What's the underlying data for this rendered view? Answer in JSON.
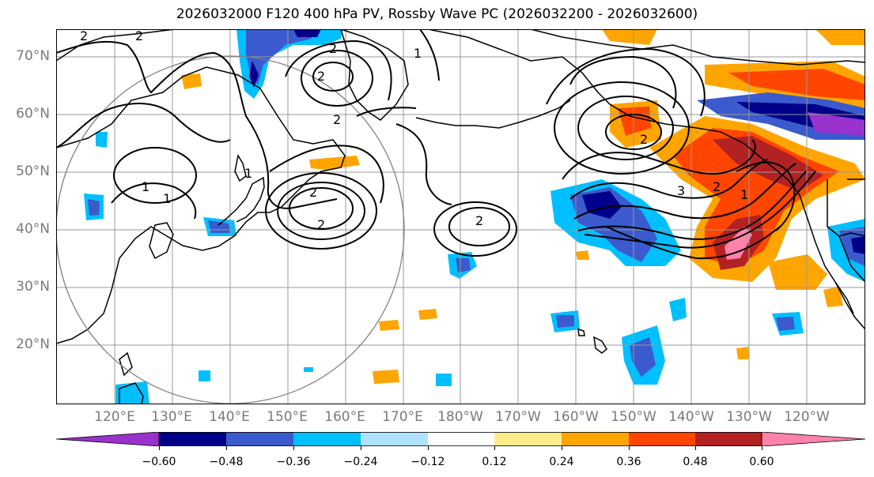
{
  "title": "2026032000 F120 400 hPa PV, Rossby Wave PC (2026032200 - 2026032600)",
  "lat_labels": [
    "70°N",
    "60°N",
    "50°N",
    "40°N",
    "30°N",
    "20°N"
  ],
  "lon_labels": [
    "120°E",
    "130°E",
    "140°E",
    "150°E",
    "160°E",
    "170°E",
    "180°W",
    "170°W",
    "160°W",
    "150°W",
    "140°W",
    "130°W",
    "120°W"
  ],
  "colorbar": {
    "colors": [
      "#9932cc",
      "#00008b",
      "#3a5acd",
      "#00bfff",
      "#b0e2ff",
      "#ffffff",
      "#ffec8b",
      "#ffa500",
      "#ff4500",
      "#b22222",
      "#ff82ab"
    ],
    "tick_labels": [
      "−0.60",
      "−0.48",
      "−0.36",
      "−0.24",
      "−0.12",
      "0.12",
      "0.24",
      "0.36",
      "0.48",
      "0.60"
    ]
  },
  "contour_labels": [
    "2",
    "2",
    "2",
    "2",
    "2",
    "2",
    "1",
    "1",
    "1",
    "1",
    "2",
    "2",
    "2",
    "3",
    "2",
    "1"
  ]
}
